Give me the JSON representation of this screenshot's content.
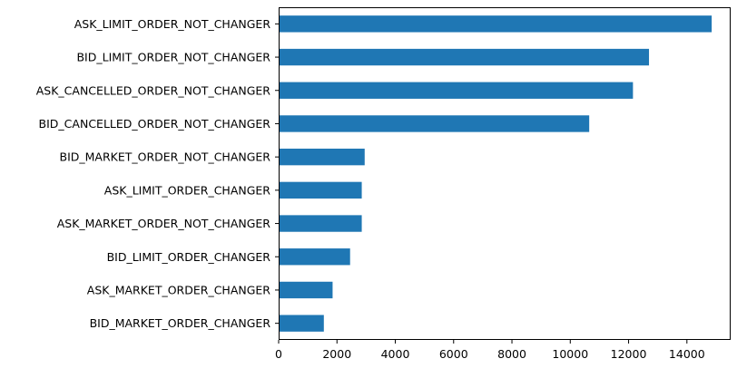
{
  "chart_data": {
    "type": "bar",
    "orientation": "horizontal",
    "title": "",
    "xlabel": "",
    "ylabel": "",
    "categories": [
      "ASK_LIMIT_ORDER_NOT_CHANGER",
      "BID_LIMIT_ORDER_NOT_CHANGER",
      "ASK_CANCELLED_ORDER_NOT_CHANGER",
      "BID_CANCELLED_ORDER_NOT_CHANGER",
      "BID_MARKET_ORDER_NOT_CHANGER",
      "ASK_LIMIT_ORDER_CHANGER",
      "ASK_MARKET_ORDER_NOT_CHANGER",
      "BID_LIMIT_ORDER_CHANGER",
      "ASK_MARKET_ORDER_CHANGER",
      "BID_MARKET_ORDER_CHANGER"
    ],
    "values": [
      14850,
      12700,
      12150,
      10650,
      2950,
      2850,
      2850,
      2450,
      1850,
      1550
    ],
    "xlim": [
      0,
      15500
    ],
    "xticks": [
      0,
      2000,
      4000,
      6000,
      8000,
      10000,
      12000,
      14000
    ],
    "xtick_labels": [
      "0",
      "2000",
      "4000",
      "6000",
      "8000",
      "10000",
      "12000",
      "14000"
    ],
    "grid": false,
    "legend": "none",
    "bar_color": "#1f77b4"
  }
}
